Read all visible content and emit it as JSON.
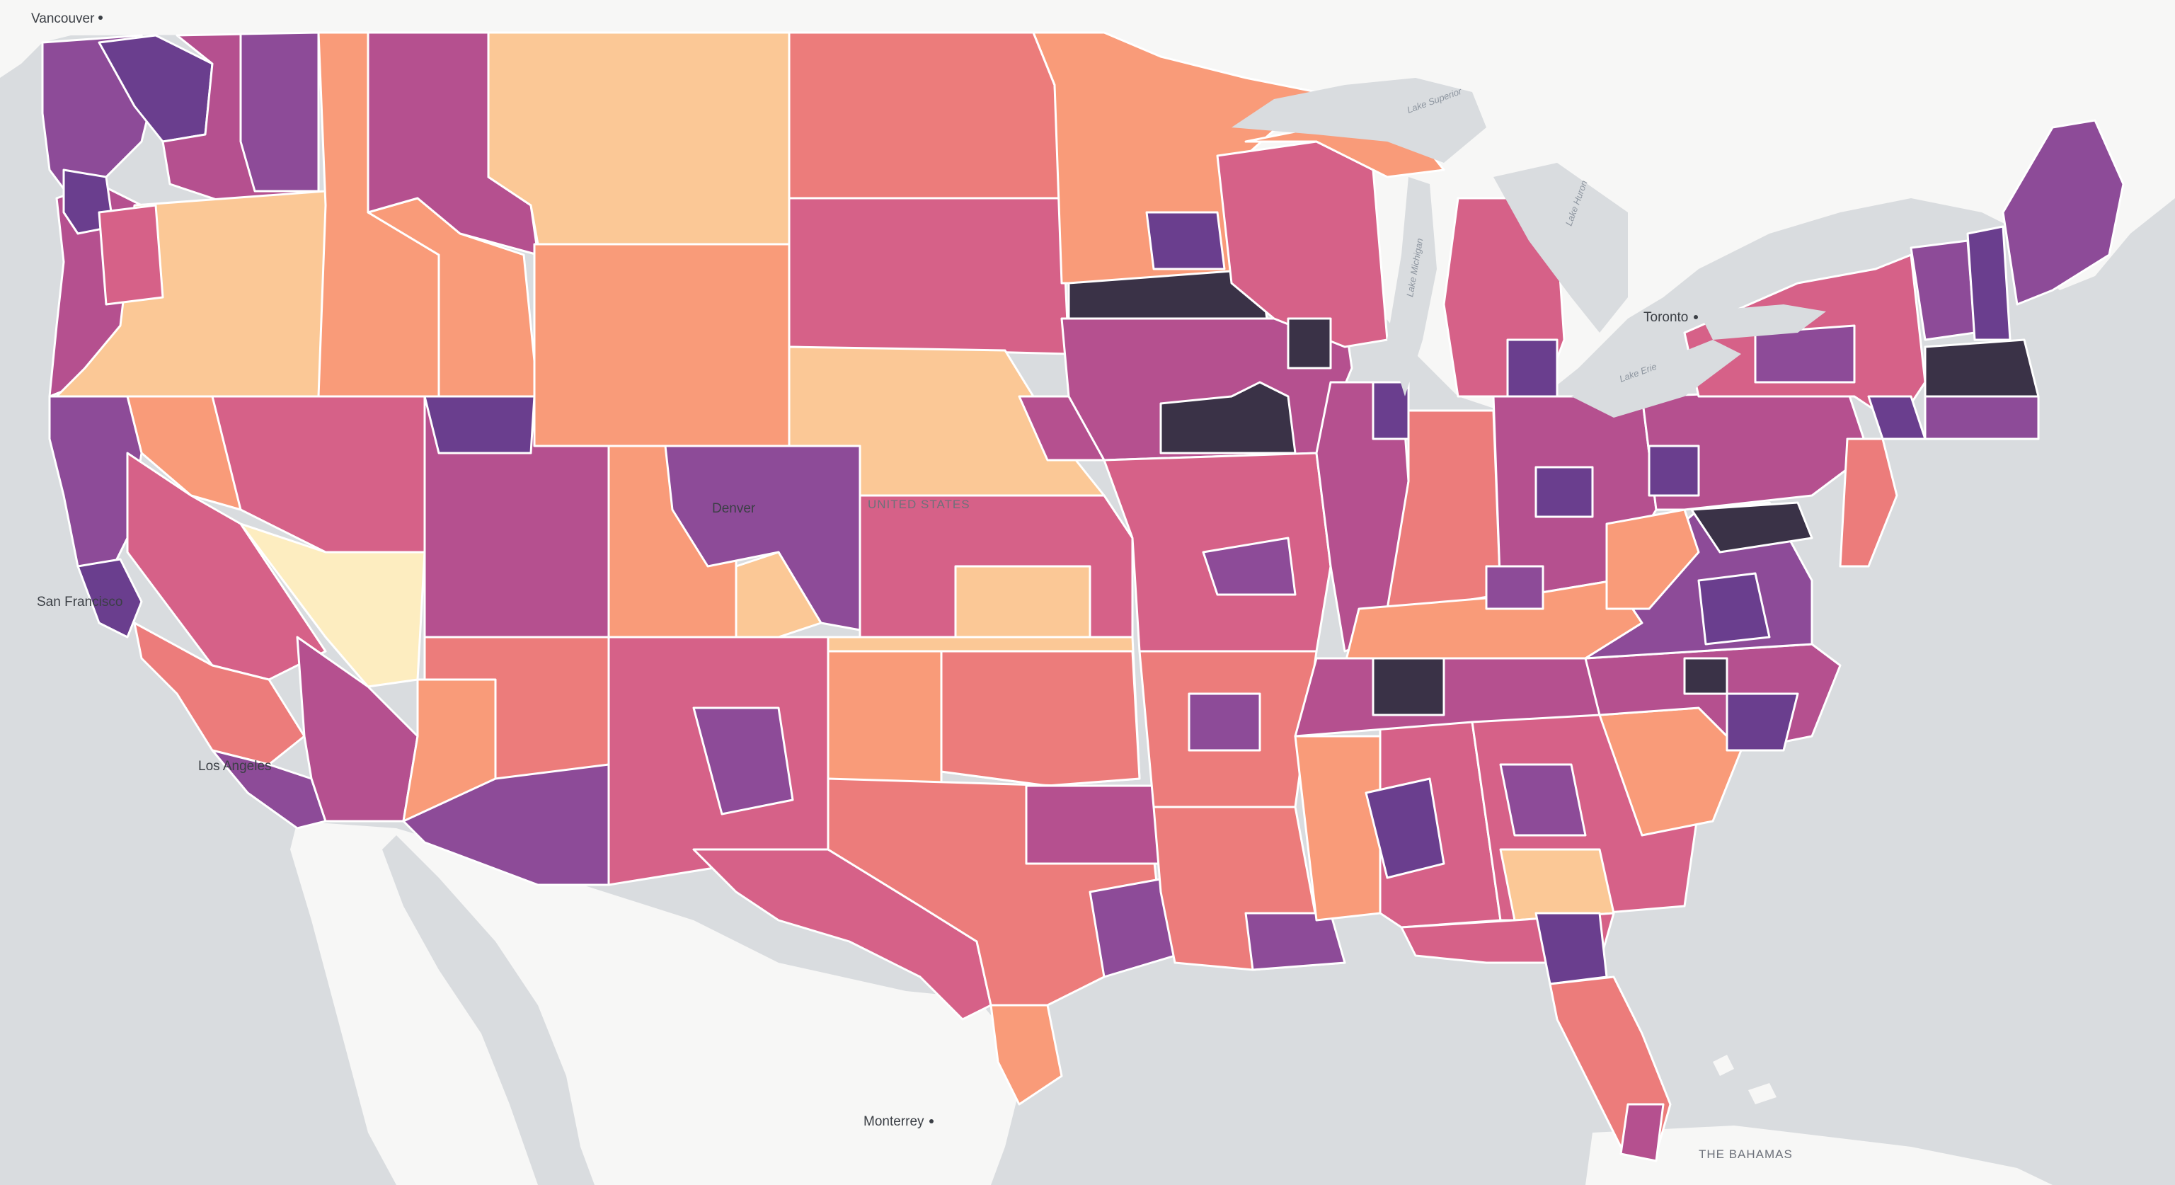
{
  "map": {
    "type": "choropleth",
    "subject": "US congressional districts",
    "color_scale": [
      "#fdedc0",
      "#fbc896",
      "#f99b79",
      "#ec7c7b",
      "#d66188",
      "#b5508f",
      "#8d4b98",
      "#6a3e8e",
      "#3a3247"
    ],
    "colors": {
      "ocean": "#d9dcdf",
      "land_foreign": "#f7f7f6",
      "lakes": "#d9dcdf",
      "border": "#ffffff"
    },
    "labels": {
      "cities": [
        "Vancouver",
        "San Francisco",
        "Los Angeles",
        "Denver",
        "Toronto",
        "Monterrey"
      ],
      "country": "UNITED STATES",
      "bahamas": "THE BAHAMAS",
      "lakes": [
        "Lake Superior",
        "Lake Michigan",
        "Lake Huron",
        "Lake Erie"
      ]
    }
  }
}
